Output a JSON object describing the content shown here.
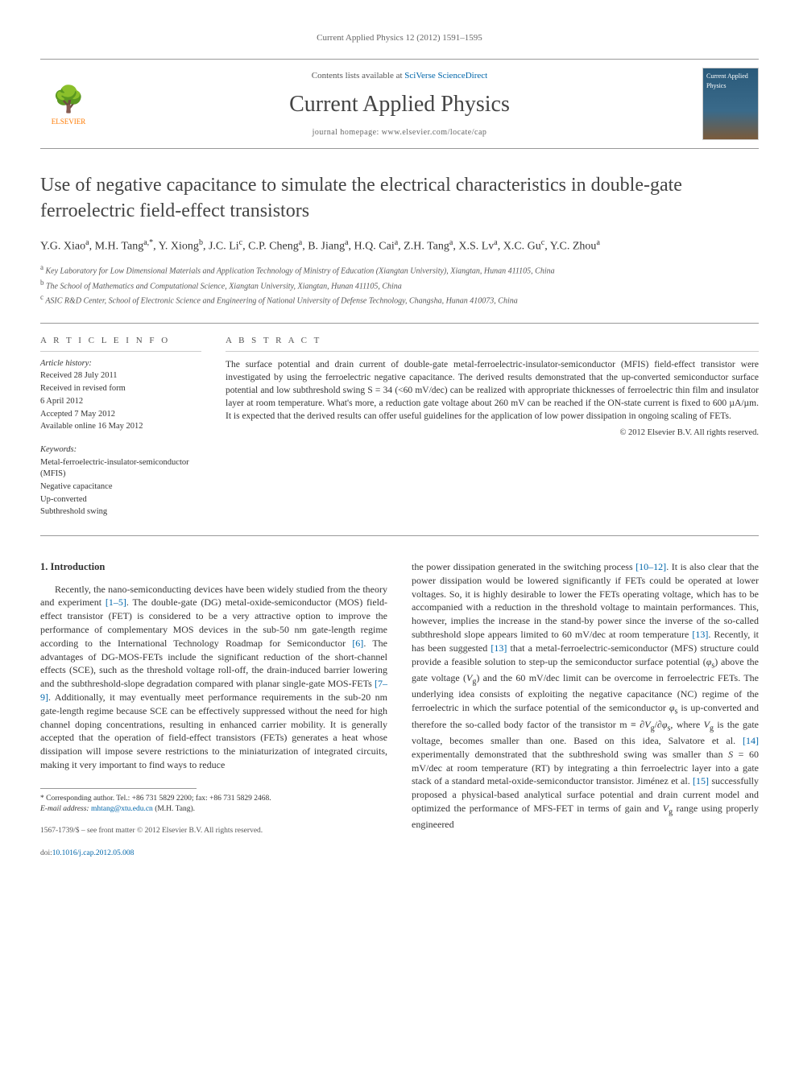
{
  "journal_ref": "Current Applied Physics 12 (2012) 1591–1595",
  "masthead": {
    "contents_prefix": "Contents lists available at ",
    "contents_link": "SciVerse ScienceDirect",
    "journal_name": "Current Applied Physics",
    "homepage": "journal homepage: www.elsevier.com/locate/cap",
    "publisher": "ELSEVIER",
    "cover_label": "Current Applied Physics"
  },
  "title": "Use of negative capacitance to simulate the electrical characteristics in double-gate ferroelectric field-effect transistors",
  "authors_html": "Y.G. Xiao <sup>a</sup>, M.H. Tang <sup>a,*</sup>, Y. Xiong <sup>b</sup>, J.C. Li <sup>c</sup>, C.P. Cheng <sup>a</sup>, B. Jiang <sup>a</sup>, H.Q. Cai <sup>a</sup>, Z.H. Tang <sup>a</sup>, X.S. Lv <sup>a</sup>, X.C. Gu <sup>c</sup>, Y.C. Zhou <sup>a</sup>",
  "affiliations": [
    {
      "sup": "a",
      "text": "Key Laboratory for Low Dimensional Materials and Application Technology of Ministry of Education (Xiangtan University), Xiangtan, Hunan 411105, China"
    },
    {
      "sup": "b",
      "text": "The School of Mathematics and Computational Science, Xiangtan University, Xiangtan, Hunan 411105, China"
    },
    {
      "sup": "c",
      "text": "ASIC R&D Center, School of Electronic Science and Engineering of National University of Defense Technology, Changsha, Hunan 410073, China"
    }
  ],
  "article_info": {
    "heading": "A R T I C L E   I N F O",
    "history_label": "Article history:",
    "history": [
      "Received 28 July 2011",
      "Received in revised form",
      "6 April 2012",
      "Accepted 7 May 2012",
      "Available online 16 May 2012"
    ],
    "keywords_label": "Keywords:",
    "keywords": [
      "Metal-ferroelectric-insulator-semiconductor (MFIS)",
      "Negative capacitance",
      "Up-converted",
      "Subthreshold swing"
    ]
  },
  "abstract": {
    "heading": "A B S T R A C T",
    "text": "The surface potential and drain current of double-gate metal-ferroelectric-insulator-semiconductor (MFIS) field-effect transistor were investigated by using the ferroelectric negative capacitance. The derived results demonstrated that the up-converted semiconductor surface potential and low subthreshold swing S = 34 (<60 mV/dec) can be realized with appropriate thicknesses of ferroelectric thin film and insulator layer at room temperature. What's more, a reduction gate voltage about 260 mV can be reached if the ON-state current is fixed to 600 µA/µm. It is expected that the derived results can offer useful guidelines for the application of low power dissipation in ongoing scaling of FETs.",
    "copyright": "© 2012 Elsevier B.V. All rights reserved."
  },
  "section1": {
    "heading": "1. Introduction",
    "col1": "Recently, the nano-semiconducting devices have been widely studied from the theory and experiment [1–5]. The double-gate (DG) metal-oxide-semiconductor (MOS) field-effect transistor (FET) is considered to be a very attractive option to improve the performance of complementary MOS devices in the sub-50 nm gate-length regime according to the International Technology Roadmap for Semiconductor [6]. The advantages of DG-MOS-FETs include the significant reduction of the short-channel effects (SCE), such as the threshold voltage roll-off, the drain-induced barrier lowering and the subthreshold-slope degradation compared with planar single-gate MOS-FETs [7–9]. Additionally, it may eventually meet performance requirements in the sub-20 nm gate-length regime because SCE can be effectively suppressed without the need for high channel doping concentrations, resulting in enhanced carrier mobility. It is generally accepted that the operation of field-effect transistors (FETs) generates a heat whose dissipation will impose severe restrictions to the miniaturization of integrated circuits, making it very important to find ways to reduce",
    "col2": "the power dissipation generated in the switching process [10–12]. It is also clear that the power dissipation would be lowered significantly if FETs could be operated at lower voltages. So, it is highly desirable to lower the FETs operating voltage, which has to be accompanied with a reduction in the threshold voltage to maintain performances. This, however, implies the increase in the stand-by power since the inverse of the so-called subthreshold slope appears limited to 60 mV/dec at room temperature [13]. Recently, it has been suggested [13] that a metal-ferroelectric-semiconductor (MFS) structure could provide a feasible solution to step-up the semiconductor surface potential (φs) above the gate voltage (Vg) and the 60 mV/dec limit can be overcome in ferroelectric FETs. The underlying idea consists of exploiting the negative capacitance (NC) regime of the ferroelectric in which the surface potential of the semiconductor φs is up-converted and therefore the so-called body factor of the transistor m ≡ ∂Vg/∂φs, where Vg is the gate voltage, becomes smaller than one. Based on this idea, Salvatore et al. [14] experimentally demonstrated that the subthreshold swing was smaller than S = 60 mV/dec at room temperature (RT) by integrating a thin ferroelectric layer into a gate stack of a standard metal-oxide-semiconductor transistor. Jiménez et al. [15] successfully proposed a physical-based analytical surface potential and drain current model and optimized the performance of MFS-FET in terms of gain and Vg range using properly engineered"
  },
  "footnote": {
    "corr": "* Corresponding author. Tel.: +86 731 5829 2200; fax: +86 731 5829 2468.",
    "email_label": "E-mail address: ",
    "email": "mhtang@xtu.edu.cn",
    "email_who": " (M.H. Tang)."
  },
  "bottom": {
    "issn": "1567-1739/$ – see front matter © 2012 Elsevier B.V. All rights reserved.",
    "doi_label": "doi:",
    "doi": "10.1016/j.cap.2012.05.008"
  },
  "colors": {
    "link": "#0066aa",
    "text": "#333333",
    "accent": "#ff7a00",
    "rule": "#999999"
  }
}
